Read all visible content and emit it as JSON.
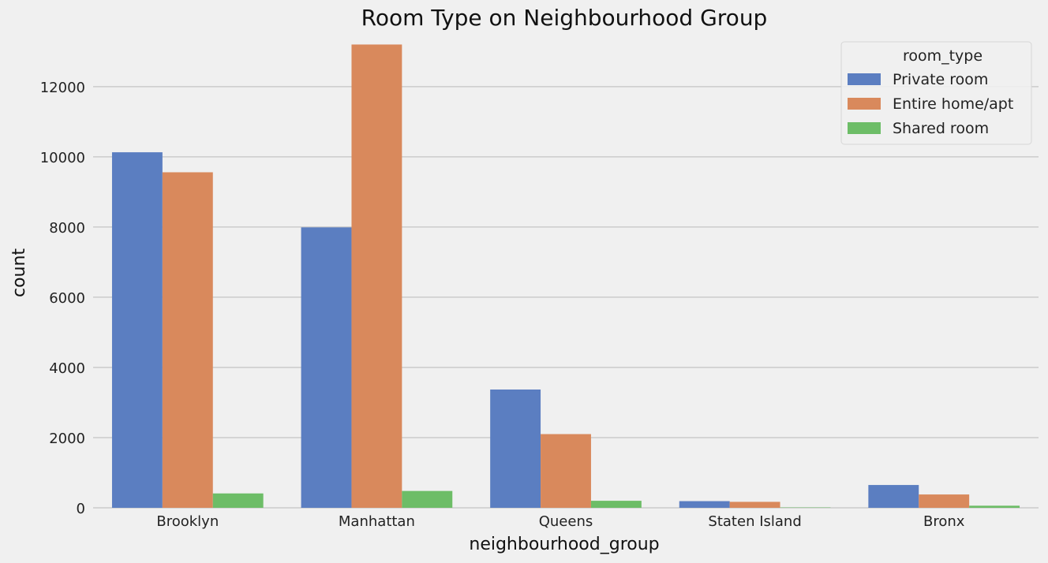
{
  "chart_data": {
    "type": "bar",
    "title": "Room Type on Neighbourhood Group",
    "xlabel": "neighbourhood_group",
    "ylabel": "count",
    "categories": [
      "Brooklyn",
      "Manhattan",
      "Queens",
      "Staten Island",
      "Bronx"
    ],
    "series": [
      {
        "name": "Private room",
        "color": "#5b7ec1",
        "values": [
          10130,
          7990,
          3370,
          190,
          650
        ]
      },
      {
        "name": "Entire home/apt",
        "color": "#d9895c",
        "values": [
          9560,
          13200,
          2100,
          170,
          380
        ]
      },
      {
        "name": "Shared room",
        "color": "#6dbd67",
        "values": [
          410,
          480,
          200,
          10,
          60
        ]
      }
    ],
    "ylim": [
      0,
      13300
    ],
    "yticks": [
      0,
      2000,
      4000,
      6000,
      8000,
      10000,
      12000
    ],
    "grid": "y",
    "legend": {
      "title": "room_type",
      "placement": "top-right"
    }
  }
}
